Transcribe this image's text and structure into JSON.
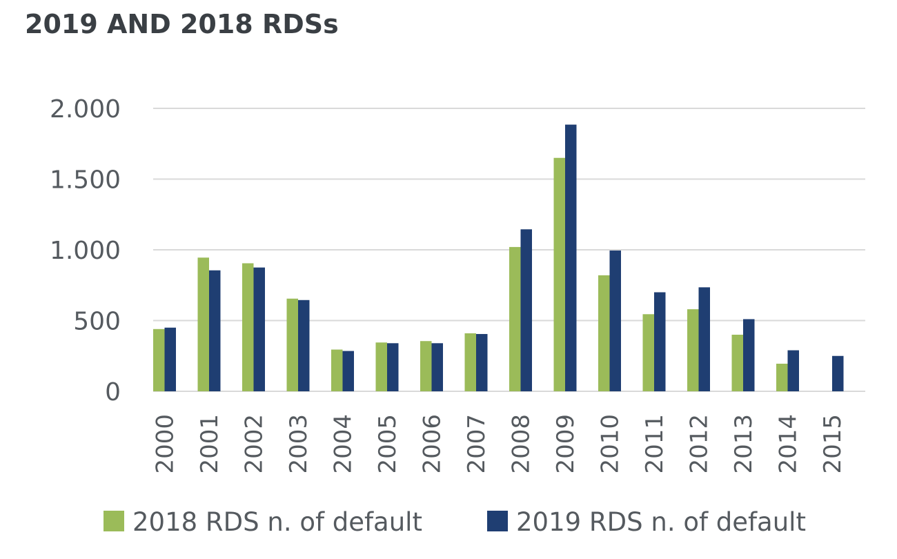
{
  "chart_data": {
    "type": "bar",
    "title": "2019 AND 2018 RDSs",
    "xlabel": "",
    "ylabel": "",
    "ylim": [
      0,
      2000
    ],
    "yticks": [
      0,
      500,
      1000,
      1500,
      2000
    ],
    "ytick_labels": [
      "0",
      "500",
      "1.000",
      "1.500",
      "2.000"
    ],
    "categories": [
      "2000",
      "2001",
      "2002",
      "2003",
      "2004",
      "2005",
      "2006",
      "2007",
      "2008",
      "2009",
      "2010",
      "2011",
      "2012",
      "2013",
      "2014",
      "2015"
    ],
    "series": [
      {
        "name": "2018 RDS n. of default",
        "color": "#9bbb59",
        "values": [
          440,
          945,
          905,
          655,
          295,
          345,
          355,
          410,
          1020,
          1650,
          820,
          545,
          580,
          400,
          195,
          null
        ]
      },
      {
        "name": "2019 RDS n. of default",
        "color": "#1f3e72",
        "values": [
          450,
          855,
          875,
          645,
          285,
          340,
          340,
          405,
          1145,
          1885,
          995,
          700,
          735,
          510,
          290,
          250
        ]
      }
    ],
    "legend_position": "bottom",
    "grid": true
  }
}
